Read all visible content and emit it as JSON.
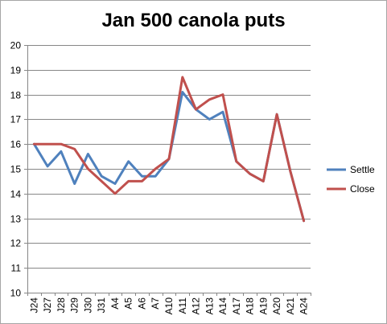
{
  "chart_data": {
    "type": "line",
    "title": "Jan 500 canola puts",
    "xlabel": "",
    "ylabel": "",
    "ylim": [
      10,
      20
    ],
    "yticks": [
      10,
      11,
      12,
      13,
      14,
      15,
      16,
      17,
      18,
      19,
      20
    ],
    "grid": "horizontal",
    "legend_position": "right",
    "categories": [
      "J24",
      "J27",
      "J28",
      "J29",
      "J30",
      "J31",
      "A4",
      "A5",
      "A6",
      "A7",
      "A10",
      "A11",
      "A12",
      "A13",
      "A14",
      "A17",
      "A18",
      "A19",
      "A20",
      "A21",
      "A24"
    ],
    "series": [
      {
        "name": "Settle",
        "color": "#4f81bd",
        "values": [
          16.0,
          15.1,
          15.7,
          14.4,
          15.6,
          14.7,
          14.4,
          15.3,
          14.7,
          14.7,
          15.4,
          18.1,
          17.4,
          17.0,
          17.3,
          15.3,
          14.8,
          14.5,
          17.2,
          14.9,
          12.9
        ]
      },
      {
        "name": "Close",
        "color": "#c0504d",
        "values": [
          16.0,
          16.0,
          16.0,
          15.8,
          15.0,
          14.5,
          14.0,
          14.5,
          14.5,
          15.0,
          15.4,
          18.7,
          17.4,
          17.8,
          18.0,
          15.3,
          14.8,
          14.5,
          17.2,
          14.9,
          12.9
        ]
      }
    ]
  }
}
